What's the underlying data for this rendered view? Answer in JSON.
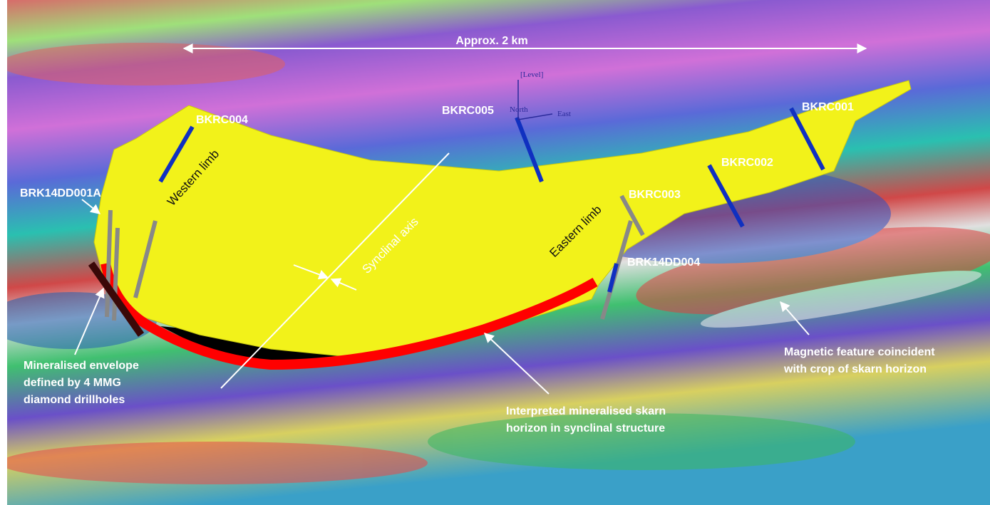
{
  "scale_bar": "Approx. 2 km",
  "orientation": {
    "up": "[Level]",
    "north": "North",
    "east": "East"
  },
  "drillholes": [
    "BKRC004",
    "BKRC005",
    "BKRC001",
    "BKRC002",
    "BKRC003",
    "BRK14DD001A",
    "BRK14DD004"
  ],
  "structure_labels": [
    "Western limb",
    "Eastern limb",
    "Synclinal axis"
  ],
  "annotations": [
    {
      "lines": [
        "Mineralised envelope",
        "defined by 4 MMG",
        "diamond drillholes"
      ]
    },
    {
      "lines": [
        "Interpreted  mineralised skarn",
        "horizon in synclinal structure"
      ]
    },
    {
      "lines": [
        "Magnetic feature coincident",
        "with crop of skarn horizon"
      ]
    }
  ]
}
